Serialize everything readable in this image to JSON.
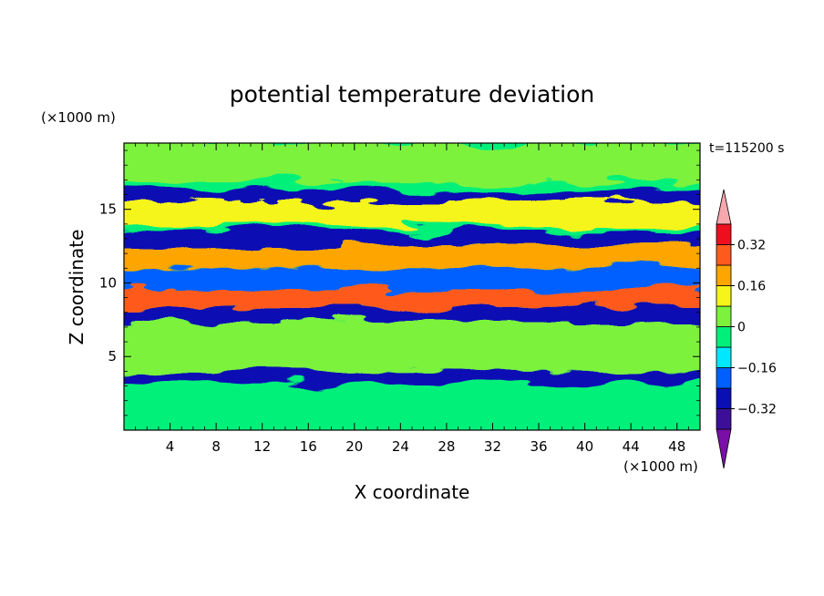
{
  "chart_data": {
    "type": "heatmap",
    "title": "potential temperature deviation",
    "xlabel": "X coordinate",
    "ylabel": "Z coordinate",
    "x_unit": "(×1000 m)",
    "y_unit": "(×1000 m)",
    "time_label": "t=115200 s",
    "xlim": [
      0,
      50
    ],
    "ylim": [
      0,
      19.5
    ],
    "x_ticks": [
      4,
      8,
      12,
      16,
      20,
      24,
      28,
      32,
      36,
      40,
      44,
      48
    ],
    "y_ticks": [
      5,
      10,
      15
    ],
    "colorbar": {
      "levels": [
        -0.4,
        -0.32,
        -0.24,
        -0.16,
        -0.08,
        0,
        0.08,
        0.16,
        0.24,
        0.32,
        0.4
      ],
      "tick_labels": [
        "0.32",
        "0.16",
        "0",
        "−0.16",
        "−0.32"
      ],
      "tick_values": [
        0.32,
        0.16,
        0,
        -0.16,
        -0.32
      ],
      "colors": [
        "#7a0fa8",
        "#3d0f99",
        "#0a0fb4",
        "#0060ff",
        "#00e8ff",
        "#00f07a",
        "#7cf23c",
        "#f5f51a",
        "#ffa500",
        "#ff5a1e",
        "#ee0f1e",
        "#f7a8ac"
      ],
      "extend": "both"
    },
    "bands": [
      {
        "z_from": 16.8,
        "z_to": 19.5,
        "value": 0.03
      },
      {
        "z_from": 15.6,
        "z_to": 16.3,
        "value": -0.3
      },
      {
        "z_from": 13.8,
        "z_to": 15.6,
        "value": 0.15
      },
      {
        "z_from": 12.5,
        "z_to": 13.5,
        "value": -0.28
      },
      {
        "z_from": 11,
        "z_to": 12.5,
        "value": 0.2
      },
      {
        "z_from": 9.5,
        "z_to": 11,
        "value": -0.18
      },
      {
        "z_from": 8.3,
        "z_to": 9.5,
        "value": 0.25
      },
      {
        "z_from": 7.3,
        "z_to": 8.3,
        "value": -0.3
      },
      {
        "z_from": 4,
        "z_to": 7.3,
        "value": 0.04
      },
      {
        "z_from": 3.2,
        "z_to": 4,
        "value": -0.32
      },
      {
        "z_from": 0,
        "z_to": 3.2,
        "value": -0.05
      }
    ]
  }
}
